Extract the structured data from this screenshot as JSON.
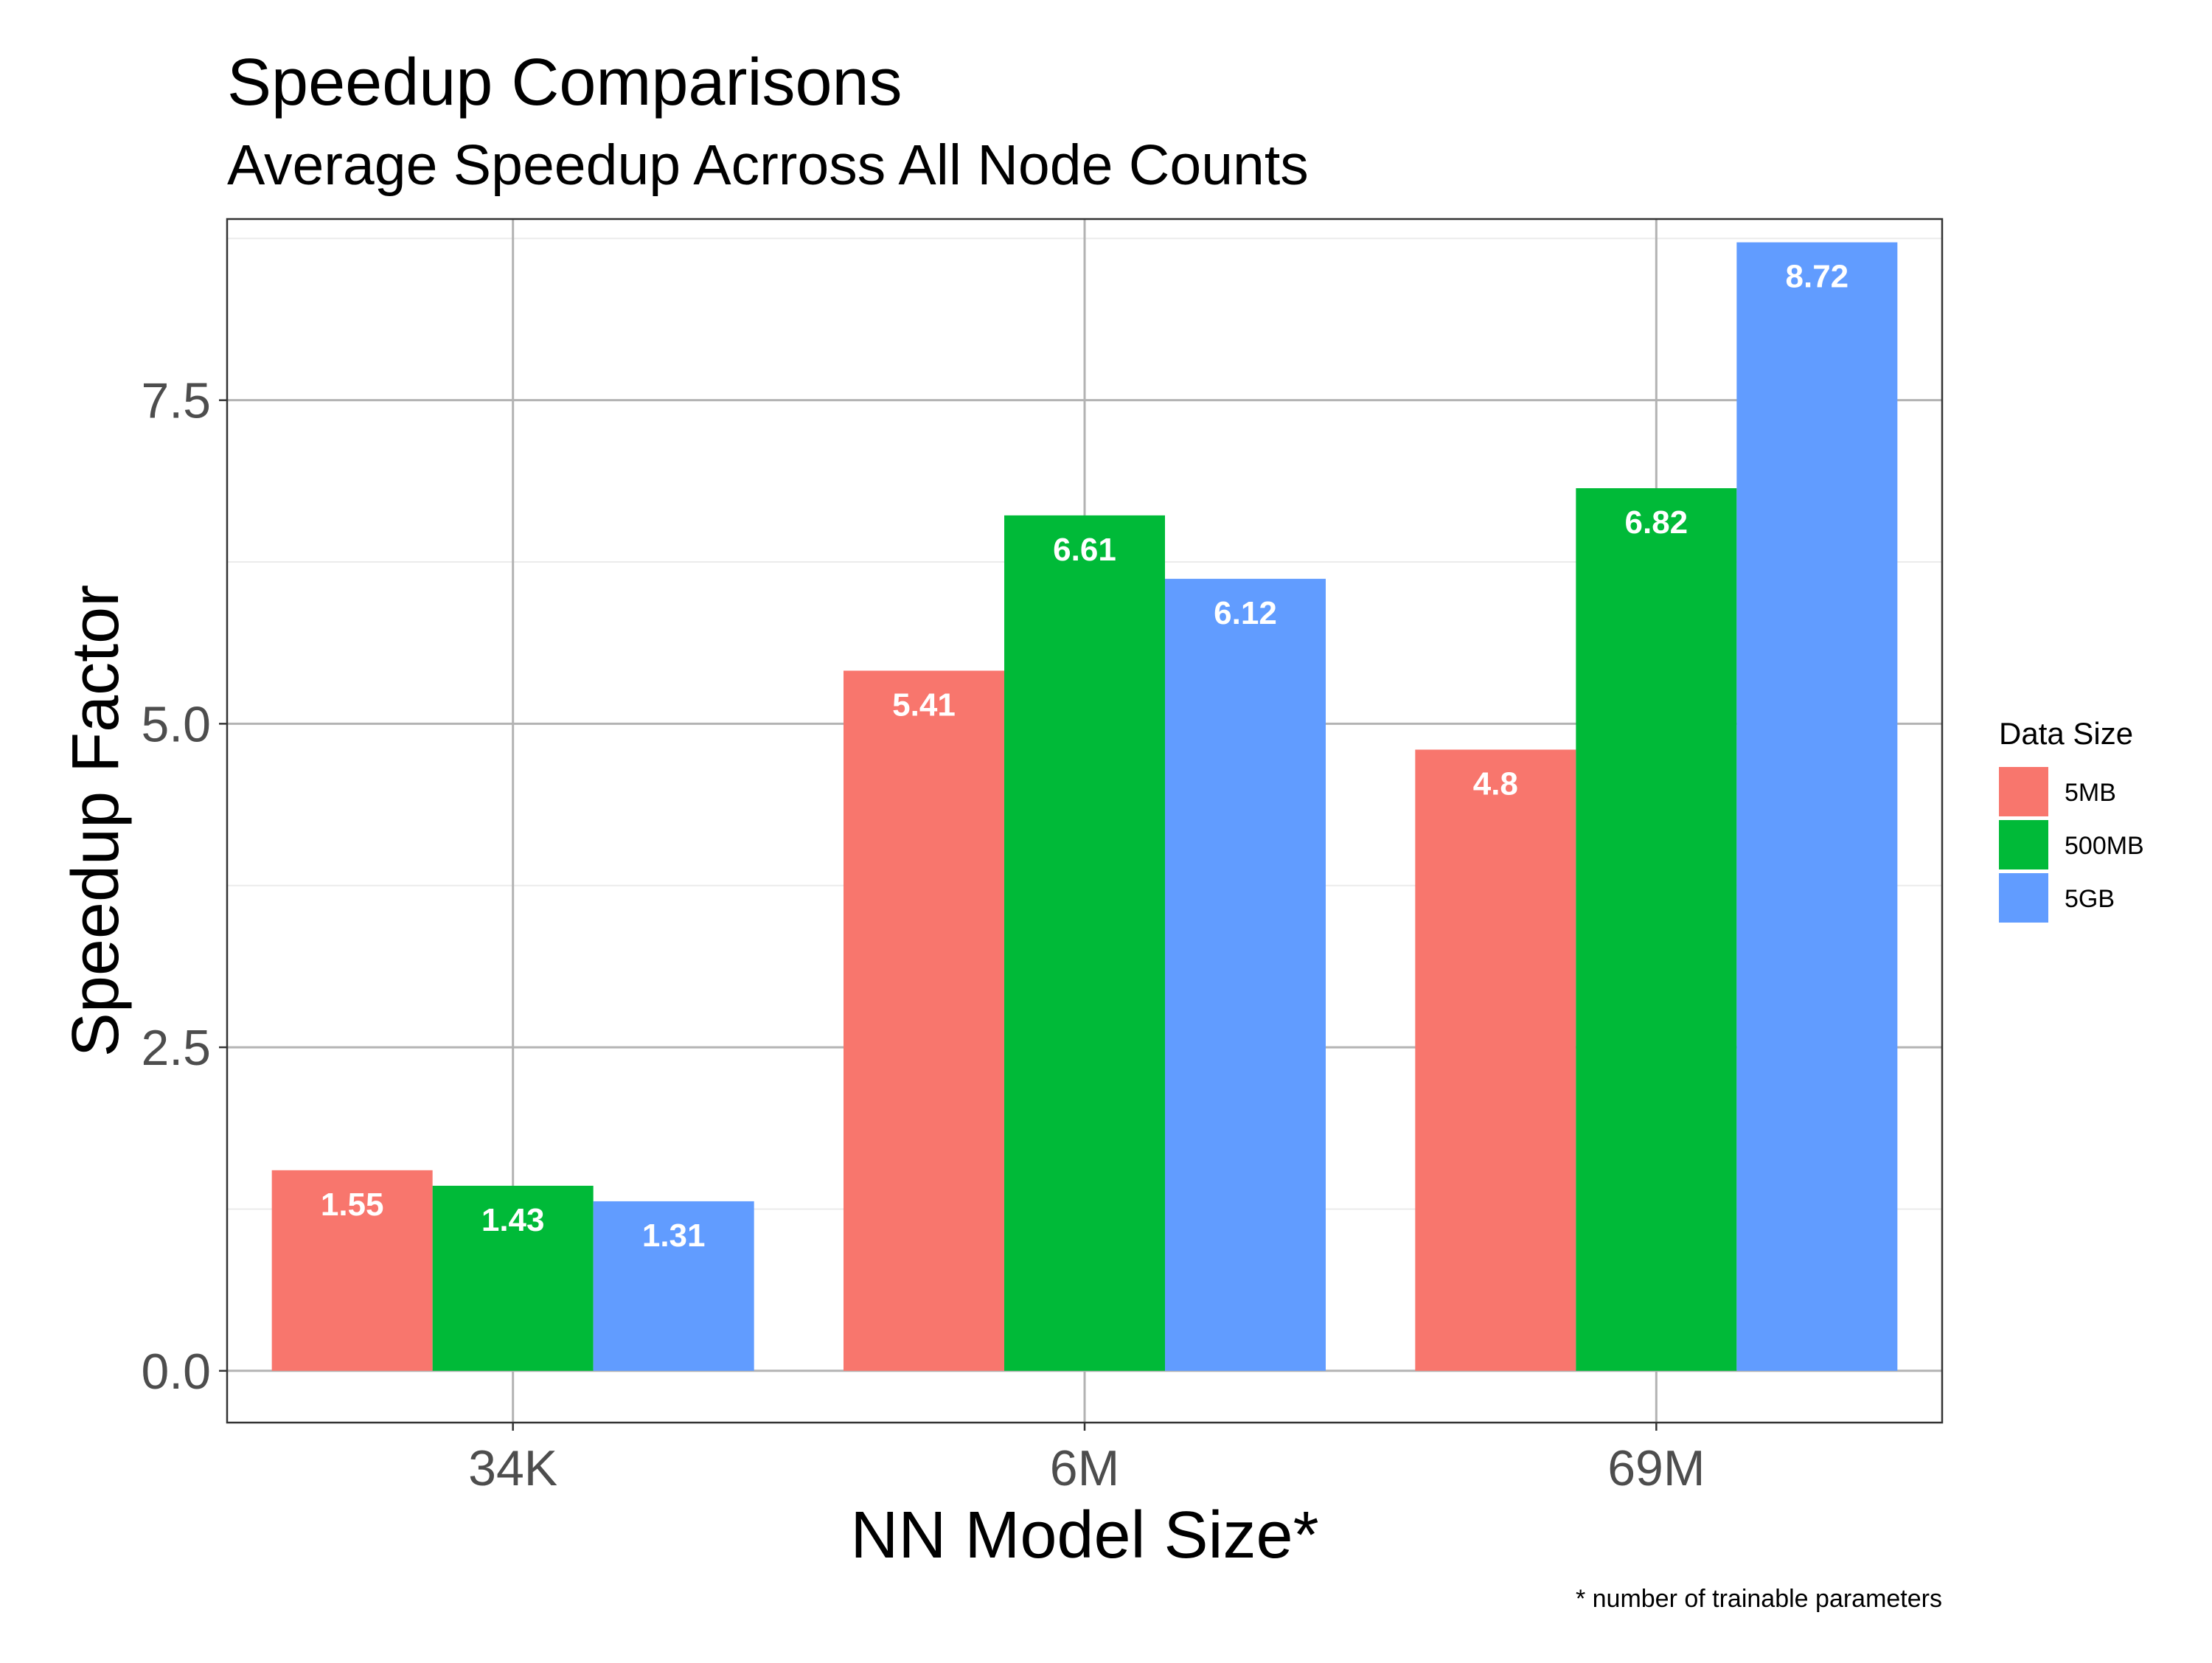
{
  "chart_data": {
    "type": "bar",
    "title": "Speedup Comparisons",
    "subtitle": "Average Speedup Acrross All Node Counts",
    "xlabel": "NN Model Size*",
    "ylabel": "Speedup Factor",
    "caption": "* number of trainable parameters",
    "categories": [
      "34K",
      "6M",
      "69M"
    ],
    "ylim": [
      -0.4,
      8.9
    ],
    "yticks": [
      0.0,
      2.5,
      5.0,
      7.5
    ],
    "ytick_labels": [
      "0.0",
      "2.5",
      "5.0",
      "7.5"
    ],
    "grid": true,
    "legend": {
      "title": "Data Size",
      "position": "right"
    },
    "series": [
      {
        "name": "5MB",
        "color": "#F8766D",
        "values": [
          1.55,
          5.41,
          4.8
        ],
        "labels": [
          "1.55",
          "5.41",
          "4.8"
        ]
      },
      {
        "name": "500MB",
        "color": "#00BA38",
        "values": [
          1.43,
          6.61,
          6.82
        ],
        "labels": [
          "1.43",
          "6.61",
          "6.82"
        ]
      },
      {
        "name": "5GB",
        "color": "#619CFF",
        "values": [
          1.31,
          6.12,
          8.72
        ],
        "labels": [
          "1.31",
          "6.12",
          "8.72"
        ]
      }
    ]
  }
}
